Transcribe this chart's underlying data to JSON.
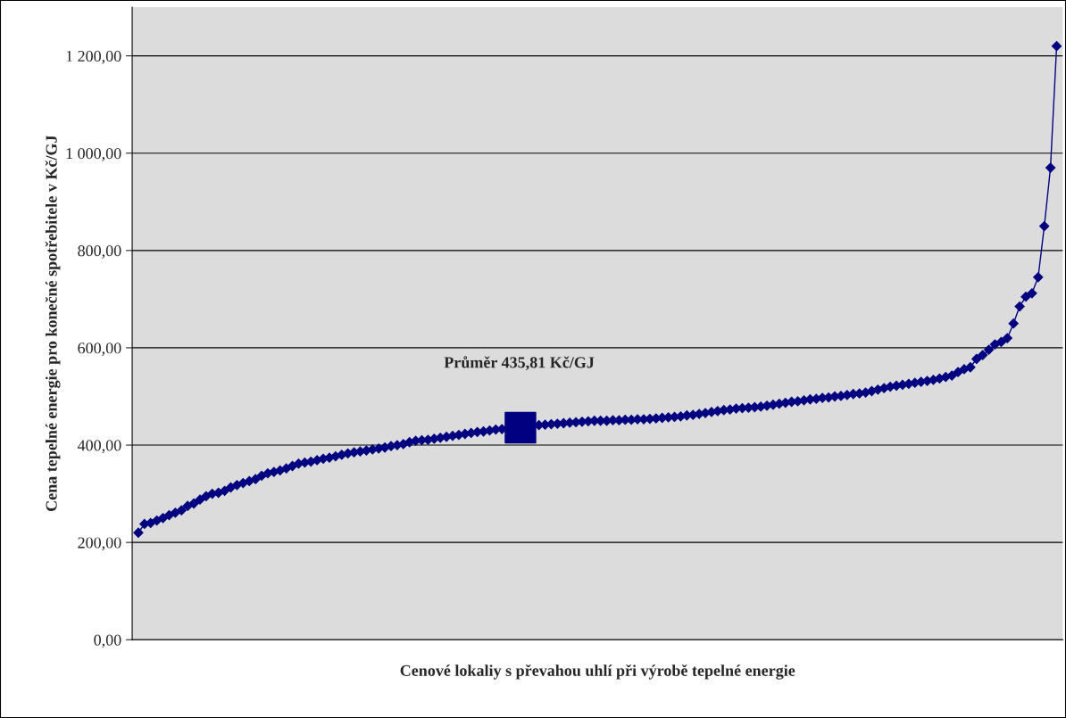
{
  "chart_data": {
    "type": "line",
    "xlabel": "Cenové lokaliy s převahou uhlí při výrobě tepelné energie",
    "ylabel": "Cena tepelné energie pro konečné spotřebitele v Kč/GJ",
    "annotations": [
      "Průměr 435,81 Kč/GJ"
    ],
    "ylim": [
      0,
      1300
    ],
    "yticks": [
      {
        "value": 0,
        "label": "0,00"
      },
      {
        "value": 200,
        "label": "200,00"
      },
      {
        "value": 400,
        "label": "400,00"
      },
      {
        "value": 600,
        "label": "600,00"
      },
      {
        "value": 800,
        "label": "800,00"
      },
      {
        "value": 1000,
        "label": "1 000,00"
      },
      {
        "value": 1200,
        "label": "1 200,00"
      }
    ],
    "grid": "y",
    "legend": false,
    "tick_labels": "y",
    "categories": [
      null,
      null,
      null,
      null,
      null,
      null,
      null,
      null,
      null,
      null,
      null,
      null,
      null,
      null,
      null,
      null,
      null,
      null,
      null,
      null,
      null,
      null,
      null,
      null,
      null,
      null,
      null,
      null,
      null,
      null,
      null,
      null,
      null,
      null,
      null,
      null,
      null,
      null,
      null,
      null,
      null,
      null,
      null,
      null,
      null,
      null,
      null,
      null,
      null,
      null,
      null,
      null,
      null,
      null,
      null,
      null,
      null,
      null,
      null,
      null,
      null,
      null,
      null,
      null,
      null,
      null,
      null,
      null,
      null,
      null,
      null,
      null,
      null,
      null,
      null,
      null,
      null,
      null,
      null,
      null,
      null,
      null,
      null,
      null,
      null,
      null,
      null,
      null,
      null,
      null,
      null,
      null,
      null,
      null,
      null,
      null,
      null,
      null,
      null,
      null,
      null,
      null,
      null,
      null,
      null,
      null,
      null,
      null,
      null,
      null,
      null,
      null,
      null,
      null,
      null,
      null,
      null,
      null,
      null,
      null,
      null,
      null,
      null,
      null,
      null,
      null,
      null,
      null,
      null,
      null,
      null,
      null,
      null,
      null,
      null,
      null,
      null,
      null,
      null,
      null,
      null,
      null,
      null,
      null,
      null,
      null,
      null,
      null,
      null,
      null
    ],
    "series": [
      {
        "marker": "diamond",
        "line_style": "solid",
        "color": "#000080",
        "values": [
          220,
          238,
          240,
          245,
          250,
          256,
          261,
          266,
          275,
          280,
          288,
          295,
          300,
          302,
          306,
          313,
          318,
          322,
          326,
          330,
          337,
          342,
          345,
          348,
          352,
          357,
          362,
          364,
          366,
          369,
          372,
          374,
          377,
          380,
          383,
          385,
          387,
          389,
          391,
          393,
          395,
          398,
          400,
          402,
          406,
          409,
          410,
          411,
          413,
          415,
          417,
          419,
          421,
          423,
          425,
          427,
          428,
          430,
          432,
          433,
          434,
          435,
          436,
          438,
          440,
          441,
          442,
          443,
          444,
          445,
          446,
          447,
          448,
          449,
          450,
          450,
          450,
          451,
          451,
          452,
          452,
          453,
          453,
          454,
          455,
          456,
          457,
          458,
          459,
          461,
          462,
          464,
          466,
          468,
          470,
          472,
          473,
          475,
          476,
          477,
          478,
          479,
          481,
          483,
          485,
          487,
          489,
          490,
          492,
          494,
          495,
          497,
          498,
          500,
          501,
          503,
          505,
          506,
          508,
          511,
          514,
          517,
          520,
          522,
          524,
          526,
          528,
          530,
          532,
          534,
          537,
          540,
          543,
          550,
          556,
          560,
          577,
          585,
          596,
          607,
          612,
          620,
          650,
          685,
          705,
          712,
          745,
          850,
          970,
          1220
        ]
      },
      {
        "type": "scatter",
        "marker": "square",
        "color": "#000080",
        "values": [
          null,
          null,
          null,
          null,
          null,
          null,
          null,
          null,
          null,
          null,
          null,
          null,
          null,
          null,
          null,
          null,
          null,
          null,
          null,
          null,
          null,
          null,
          null,
          null,
          null,
          null,
          null,
          null,
          null,
          null,
          null,
          null,
          null,
          null,
          null,
          null,
          null,
          null,
          null,
          null,
          null,
          null,
          null,
          null,
          null,
          null,
          null,
          null,
          null,
          null,
          null,
          null,
          null,
          null,
          null,
          null,
          null,
          null,
          null,
          null,
          null,
          null,
          435.81,
          null,
          null,
          null,
          null,
          null,
          null,
          null,
          null,
          null,
          null,
          null,
          null,
          null,
          null,
          null,
          null,
          null,
          null,
          null,
          null,
          null,
          null,
          null,
          null,
          null,
          null,
          null,
          null,
          null,
          null,
          null,
          null,
          null,
          null,
          null,
          null,
          null,
          null,
          null,
          null,
          null,
          null,
          null,
          null,
          null,
          null,
          null,
          null,
          null,
          null,
          null,
          null,
          null,
          null,
          null,
          null,
          null,
          null,
          null,
          null,
          null,
          null,
          null,
          null,
          null,
          null,
          null,
          null,
          null,
          null,
          null,
          null,
          null,
          null,
          null,
          null,
          null,
          null,
          null,
          null,
          null,
          null,
          null,
          null,
          null,
          null,
          null
        ]
      }
    ]
  }
}
